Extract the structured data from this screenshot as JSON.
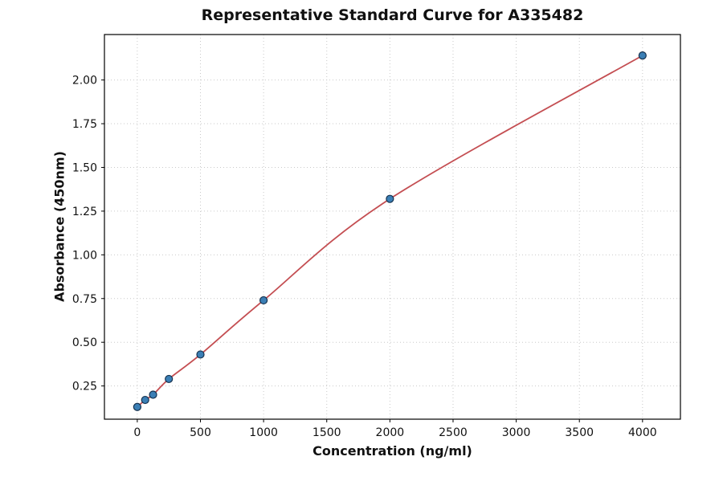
{
  "chart_data": {
    "type": "scatter",
    "title": "Representative Standard Curve for A335482",
    "xlabel": "Concentration (ng/ml)",
    "ylabel": "Absorbance (450nm)",
    "x": [
      0,
      62.5,
      125,
      250,
      500,
      1000,
      2000,
      4000
    ],
    "y": [
      0.13,
      0.17,
      0.2,
      0.29,
      0.43,
      0.74,
      1.32,
      2.14
    ],
    "x_ticks": [
      0,
      500,
      1000,
      1500,
      2000,
      2500,
      3000,
      3500,
      4000
    ],
    "y_ticks": [
      0.25,
      0.5,
      0.75,
      1.0,
      1.25,
      1.5,
      1.75,
      2.0
    ],
    "xlim": [
      -260,
      4300
    ],
    "ylim": [
      0.06,
      2.26
    ],
    "grid": true,
    "legend": "none",
    "line_color": "#c44e52",
    "marker_fill": "#3b7fb5",
    "marker_edge": "#16324f"
  }
}
